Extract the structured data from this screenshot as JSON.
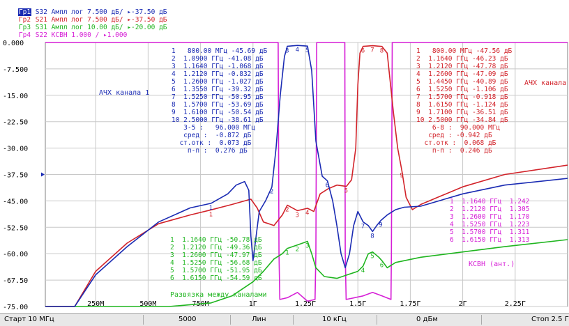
{
  "traces": [
    {
      "tag": "Гр1",
      "text": " S32 Ампл лог 7.500 дБ/ ▸-37.50 дБ",
      "color": "#1a2bb3",
      "active": true
    },
    {
      "tag": "Гр2",
      "text": " S21 Ампл лог 7.500 дБ/ ▸-37.50 дБ",
      "color": "#d2232a",
      "active": false
    },
    {
      "tag": "Гр3",
      "text": " S31 Ампл лог 10.00 дБ/ ▸-20.00 дБ",
      "color": "#1fb51f",
      "active": false
    },
    {
      "tag": "Гр4",
      "text": " S22 КСВН 1.000 / ▸1.000",
      "color": "#d61fd6",
      "active": false
    }
  ],
  "colors": {
    "s32": "#1a2bb3",
    "s21": "#d2232a",
    "s31": "#1fb51f",
    "s22": "#d61fd6"
  },
  "y_axis_labels": [
    "0.000",
    "-7.500",
    "-15.00",
    "-22.50",
    "-30.00",
    "-37.50",
    "-45.00",
    "-52.50",
    "-60.00",
    "-67.50",
    "-75.00"
  ],
  "x_axis_labels": [
    "250М",
    "500М",
    "750М",
    "1Г",
    "1.25Г",
    "1.5Г",
    "1.75Г",
    "2Г",
    "2.25Г"
  ],
  "labels": {
    "ach1": "АЧХ канала 1",
    "ach2": "АЧХ канала",
    "razv": "Развязка между каналами",
    "ksvn": "КСВН (ант.)"
  },
  "markers_blue": [
    "1   800.00 МГц -45.69 дБ",
    "2  1.0900 ГГц -41.08 дБ",
    "3  1.1640 ГГц -1.068 дБ",
    "4  1.2120 ГГц -0.832 дБ",
    "5  1.2600 ГГц -1.027 дБ",
    "6  1.3550 ГГц -39.32 дБ",
    "7  1.5250 ГГц -50.95 дБ",
    "8  1.5700 ГГц -53.69 дБ",
    "9  1.6100 ГГц -50.54 дБ",
    "10 2.5000 ГГц -38.61 дБ",
    "   3-5 :   96.000 МГц",
    "   сред :  -0.872 дБ",
    "  ст.отк :  0.073 дБ",
    "    п-п :  0.276 дБ"
  ],
  "markers_red": [
    "1   800.00 МГц -47.56 дБ",
    "2  1.1640 ГГц -46.23 дБ",
    "3  1.2120 ГГц -47.78 дБ",
    "4  1.2600 ГГц -47.09 дБ",
    "5  1.4450 ГГц -40.89 дБ",
    "6  1.5250 ГГц -1.106 дБ",
    "7  1.5700 ГГц -0.918 дБ",
    "8  1.6150 ГГц -1.124 дБ",
    "9  1.7100 ГГц -36.51 дБ",
    "10 2.5000 ГГц -34.84 дБ",
    "    6-8 :  90.000 МГц",
    "   сред : -0.942 дБ",
    "  ст.отк :  0.068 дБ",
    "    п-п :  0.246 дБ"
  ],
  "markers_green": [
    "1  1.1640 ГГц -50.78 дБ",
    "2  1.2120 ГГц -49.36 дБ",
    "3  1.2600 ГГц -47.97 дБ",
    "4  1.5250 ГГц -56.68 дБ",
    "5  1.5700 ГГц -51.95 дБ",
    "6  1.6150 ГГц -54.59 дБ"
  ],
  "markers_magenta": [
    "1  1.1640 ГГц  1.242",
    "2  1.2120 ГГц  1.305",
    "3  1.2600 ГГц  1.170",
    "4  1.5250 ГГц  1.223",
    "5  1.5700 ГГц  1.311",
    "6  1.6150 ГГц  1.313"
  ],
  "status": {
    "start": "Старт 10 МГц",
    "points": "5000",
    "sweep": "Лин",
    "ifbw": "10 кГц",
    "power": "0 дБм",
    "stop": "Стоп 2.5 Г"
  },
  "chart_data": {
    "type": "line",
    "xlabel": "",
    "ylabel": "",
    "xlim": [
      10,
      2500
    ],
    "ylim": [
      -75,
      0
    ],
    "x_ticks": [
      250,
      500,
      750,
      1000,
      1250,
      1500,
      1750,
      2000,
      2250
    ],
    "y_ticks": [
      0,
      -7.5,
      -15,
      -22.5,
      -30,
      -37.5,
      -45,
      -52.5,
      -60,
      -67.5,
      -75
    ],
    "series": [
      {
        "name": "S32",
        "color": "#1a2bb3",
        "x": [
          10,
          150,
          250,
          400,
          550,
          700,
          800,
          880,
          920,
          960,
          980,
          990,
          1000,
          1030,
          1060,
          1090,
          1110,
          1130,
          1150,
          1164,
          1212,
          1260,
          1280,
          1300,
          1330,
          1355,
          1380,
          1400,
          1420,
          1440,
          1460,
          1480,
          1500,
          1525,
          1550,
          1570,
          1590,
          1610,
          1640,
          1680,
          1720,
          1800,
          2000,
          2200,
          2500
        ],
        "y": [
          -75,
          -75,
          -66,
          -58,
          -51,
          -47,
          -45.69,
          -43,
          -40.5,
          -39.5,
          -42,
          -55,
          -62,
          -48,
          -45,
          -41.08,
          -30,
          -15,
          -4,
          -1.068,
          -0.832,
          -1.027,
          -8,
          -28,
          -38,
          -39.32,
          -45,
          -52,
          -60,
          -64,
          -60,
          -52,
          -48,
          -50.95,
          -52,
          -53.69,
          -52,
          -50.54,
          -49,
          -47.5,
          -46.8,
          -46.5,
          -43,
          -40.5,
          -38.61
        ]
      },
      {
        "name": "S21",
        "color": "#d2232a",
        "x": [
          10,
          150,
          250,
          400,
          550,
          700,
          800,
          900,
          990,
          1020,
          1050,
          1100,
          1140,
          1164,
          1212,
          1260,
          1290,
          1320,
          1360,
          1400,
          1445,
          1470,
          1490,
          1500,
          1510,
          1525,
          1570,
          1615,
          1640,
          1670,
          1690,
          1710,
          1730,
          1760,
          1800,
          2000,
          2200,
          2500
        ],
        "y": [
          -75,
          -75,
          -65,
          -57,
          -51.5,
          -49,
          -47.56,
          -46,
          -44.5,
          -47,
          -51,
          -52,
          -49,
          -46.23,
          -47.78,
          -47.09,
          -48,
          -43,
          -41.5,
          -40.5,
          -40.89,
          -39,
          -30,
          -12,
          -3,
          -1.106,
          -0.918,
          -1.124,
          -3,
          -20,
          -30,
          -36.51,
          -44,
          -47.5,
          -46,
          -41,
          -37.5,
          -34.84
        ]
      },
      {
        "name": "S31",
        "color": "#1fb51f",
        "x": [
          10,
          200,
          400,
          600,
          800,
          900,
          1000,
          1050,
          1100,
          1140,
          1164,
          1212,
          1260,
          1280,
          1300,
          1340,
          1400,
          1450,
          1500,
          1525,
          1550,
          1570,
          1600,
          1615,
          1640,
          1680,
          1800,
          2000,
          2200,
          2500
        ],
        "y": [
          -75,
          -75,
          -75,
          -75,
          -74,
          -72,
          -68,
          -65,
          -61.5,
          -60,
          -58.5,
          -57.5,
          -56.5,
          -60,
          -64,
          -66.5,
          -67,
          -66,
          -65,
          -63.5,
          -60,
          -59.5,
          -61,
          -62,
          -64,
          -62.5,
          -61,
          -59.5,
          -58,
          -56
        ]
      },
      {
        "name": "S22",
        "color": "#d61fd6",
        "x": [
          10,
          1120,
          1124,
          1128,
          1164,
          1212,
          1260,
          1296,
          1300,
          1304,
          1438,
          1440,
          1444,
          1525,
          1570,
          1615,
          1658,
          1660,
          1664,
          2500
        ],
        "y": [
          0,
          0,
          -60,
          -73,
          -72.5,
          -71,
          -73.5,
          -73,
          -60,
          0,
          0,
          -60,
          -73,
          -72,
          -71,
          -72,
          -73,
          -60,
          0,
          0
        ]
      }
    ]
  }
}
